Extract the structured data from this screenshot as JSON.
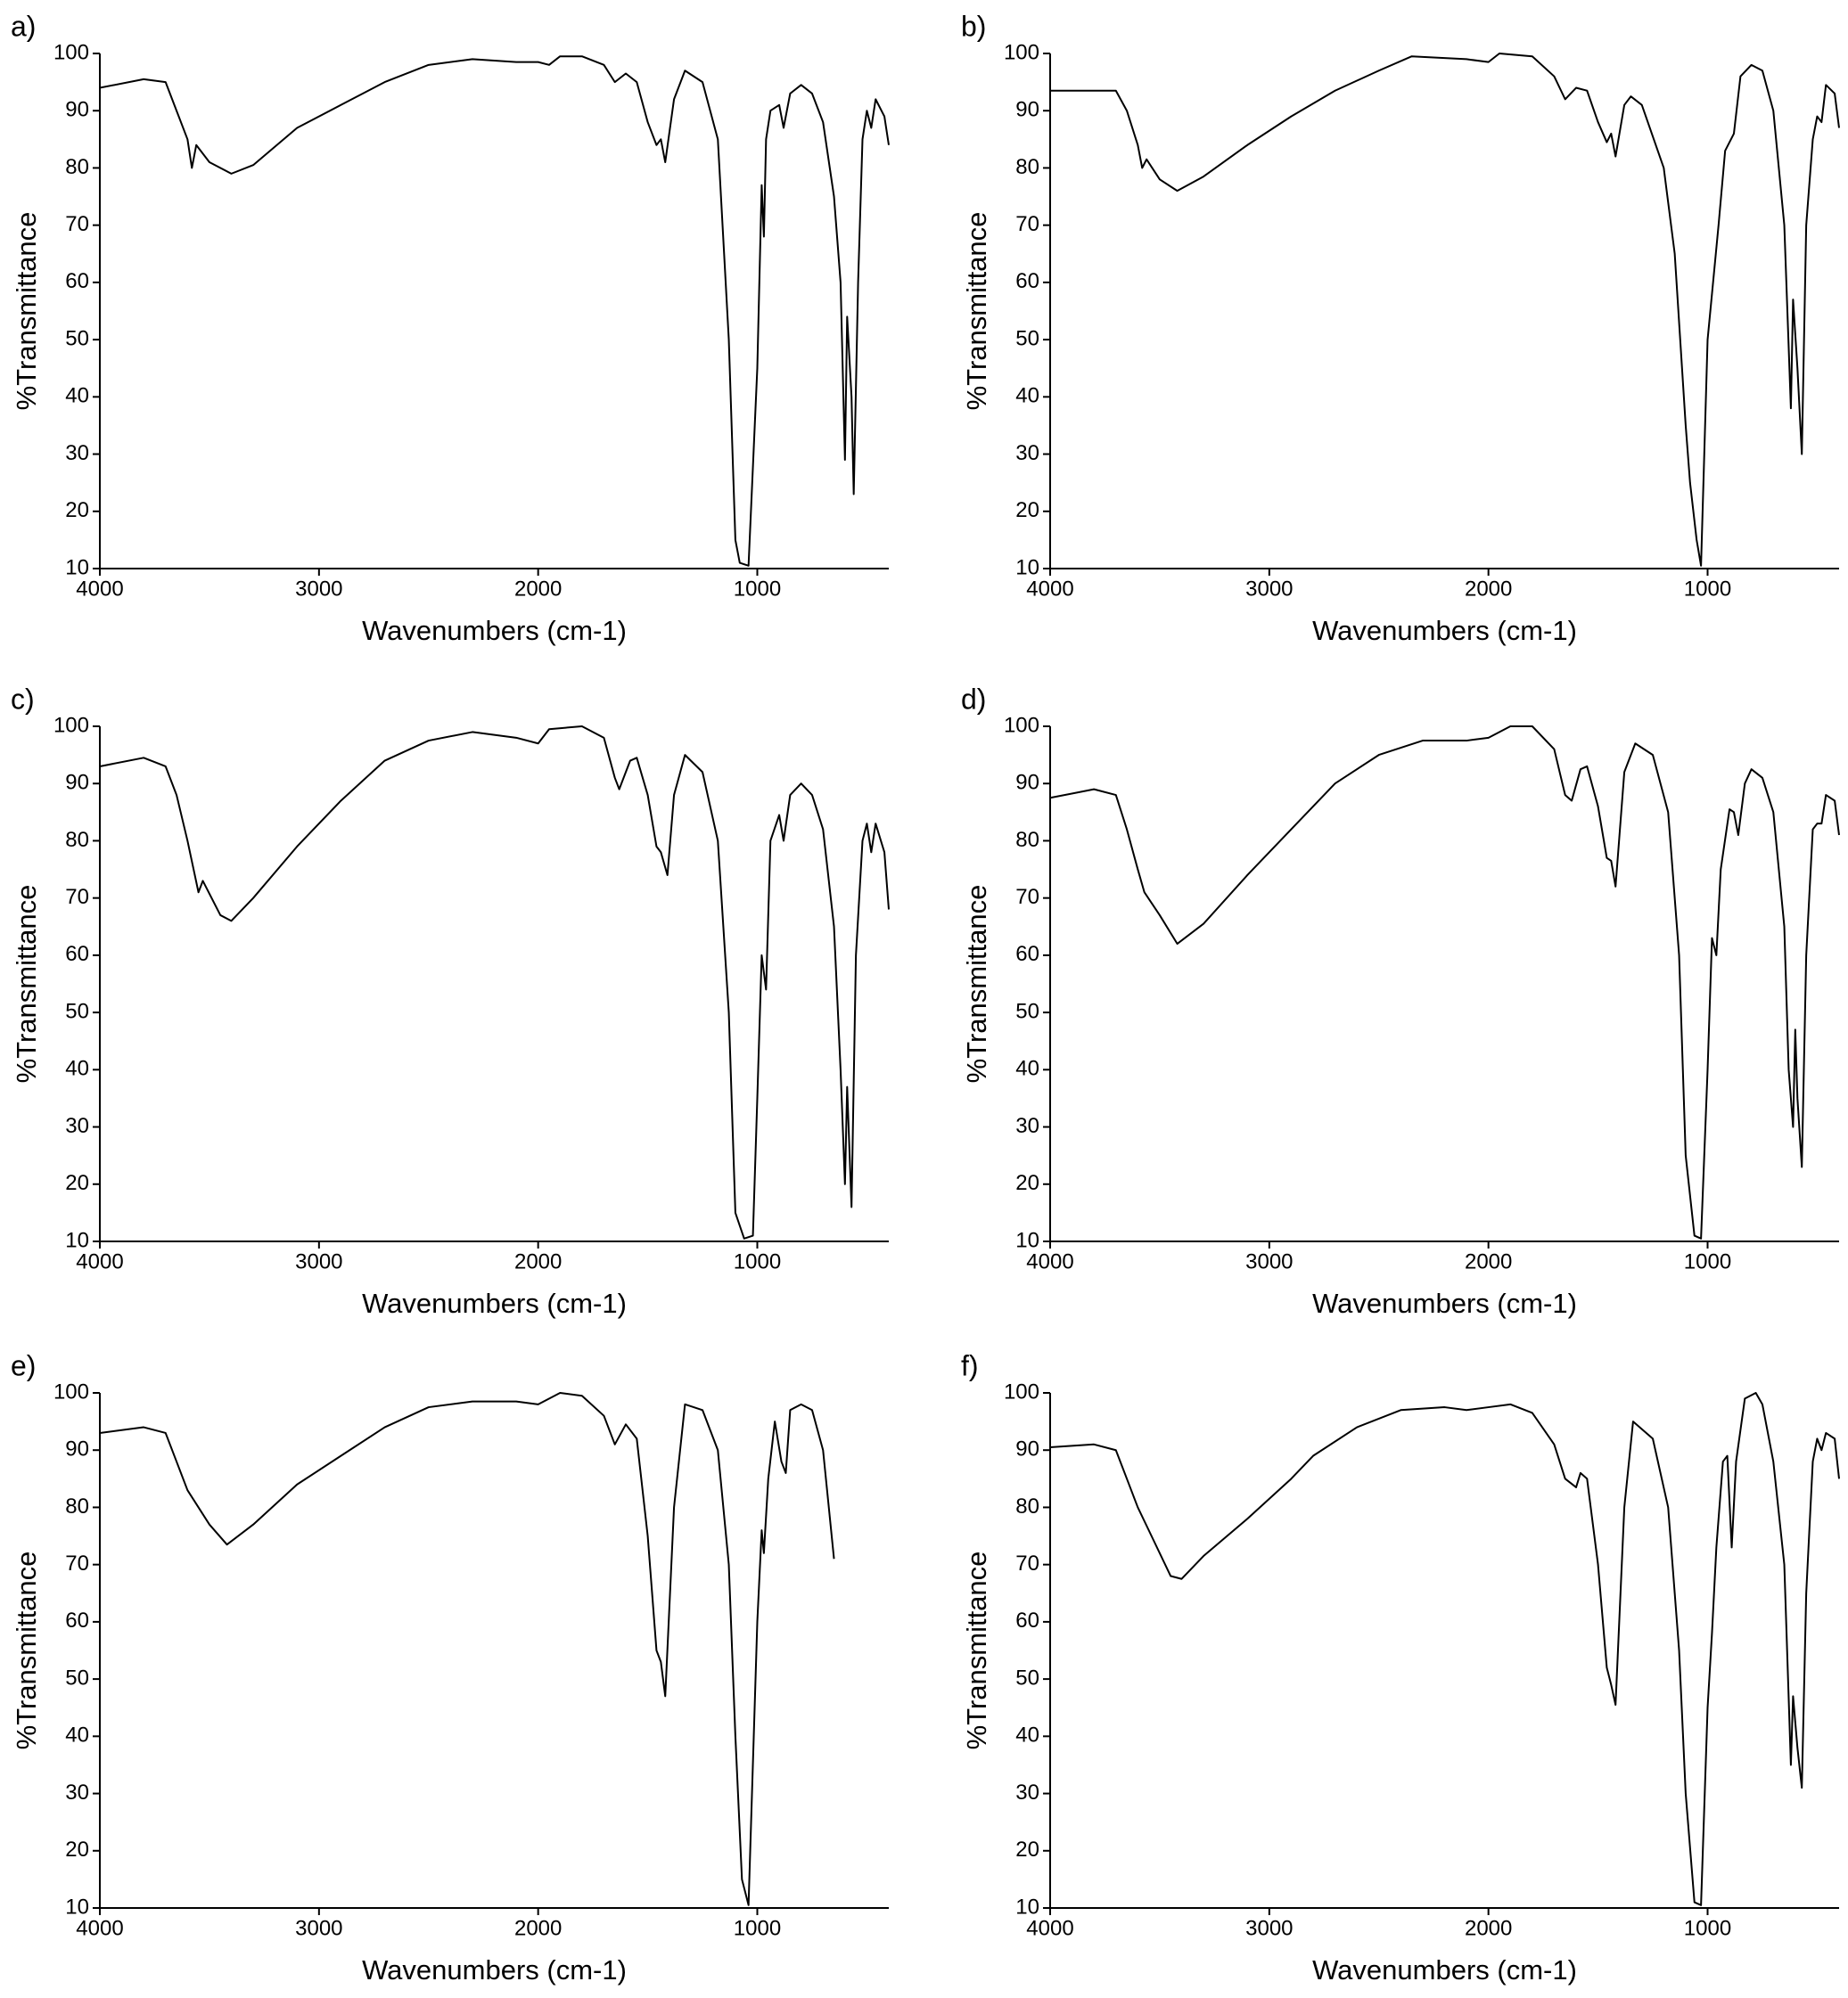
{
  "chart_data": [
    {
      "type": "line",
      "title": "a)",
      "x_label": "Wavenumbers (cm-1)",
      "y_label": "%Transmittance",
      "xlim": [
        4000,
        400
      ],
      "ylim": [
        10,
        100
      ],
      "xticks": [
        4000,
        3000,
        2000,
        1000
      ],
      "yticks": [
        10,
        20,
        30,
        40,
        50,
        60,
        70,
        80,
        90,
        100
      ],
      "x": [
        4000,
        3800,
        3700,
        3650,
        3600,
        3580,
        3560,
        3500,
        3400,
        3300,
        3100,
        2900,
        2700,
        2500,
        2300,
        2100,
        2000,
        1950,
        1900,
        1800,
        1700,
        1650,
        1600,
        1550,
        1500,
        1460,
        1440,
        1420,
        1380,
        1330,
        1250,
        1180,
        1130,
        1100,
        1080,
        1040,
        1000,
        980,
        970,
        960,
        940,
        900,
        880,
        850,
        800,
        750,
        700,
        650,
        620,
        600,
        590,
        570,
        560,
        540,
        520,
        500,
        480,
        460,
        420,
        400
      ],
      "series": [
        {
          "color": "#000000",
          "values": [
            94,
            95.5,
            95,
            90,
            85,
            80,
            84,
            81,
            79,
            80.5,
            87,
            91,
            95,
            98,
            99,
            98.5,
            98.5,
            98,
            99.5,
            99.5,
            98,
            95,
            96.5,
            95,
            88,
            84,
            85,
            81,
            92,
            97,
            95,
            85,
            50,
            15,
            11,
            10.5,
            45,
            77,
            68,
            85,
            90,
            91,
            87,
            93,
            94.5,
            93,
            88,
            75,
            60,
            29,
            54,
            40,
            23,
            60,
            85,
            90,
            87,
            92,
            89,
            84
          ]
        }
      ]
    },
    {
      "type": "line",
      "title": "b)",
      "x_label": "Wavenumbers (cm-1)",
      "y_label": "%Transmittance",
      "xlim": [
        4000,
        400
      ],
      "ylim": [
        10,
        100
      ],
      "xticks": [
        4000,
        3000,
        2000,
        1000
      ],
      "yticks": [
        10,
        20,
        30,
        40,
        50,
        60,
        70,
        80,
        90,
        100
      ],
      "x": [
        4000,
        3700,
        3650,
        3600,
        3580,
        3560,
        3500,
        3420,
        3300,
        3100,
        2900,
        2700,
        2500,
        2350,
        2100,
        2000,
        1950,
        1800,
        1700,
        1650,
        1600,
        1550,
        1500,
        1460,
        1440,
        1420,
        1380,
        1350,
        1300,
        1200,
        1150,
        1100,
        1080,
        1050,
        1030,
        1000,
        980,
        950,
        920,
        880,
        850,
        800,
        750,
        700,
        650,
        620,
        610,
        590,
        570,
        550,
        520,
        500,
        480,
        460,
        420,
        400
      ],
      "series": [
        {
          "color": "#000000",
          "values": [
            93.5,
            93.5,
            90,
            84,
            80,
            81.5,
            78,
            76,
            78.5,
            84,
            89,
            93.5,
            97,
            99.5,
            99,
            98.5,
            100,
            99.5,
            96,
            92,
            94,
            93.5,
            88,
            84.5,
            86,
            82,
            91,
            92.5,
            91,
            80,
            65,
            35,
            25,
            15,
            10.5,
            50,
            58,
            70,
            83,
            86,
            96,
            98,
            97,
            90,
            70,
            38,
            57,
            45,
            30,
            70,
            85,
            89,
            88,
            94.5,
            93,
            87
          ]
        }
      ]
    },
    {
      "type": "line",
      "title": "c)",
      "x_label": "Wavenumbers (cm-1)",
      "y_label": "%Transmittance",
      "xlim": [
        4000,
        400
      ],
      "ylim": [
        10,
        100
      ],
      "xticks": [
        4000,
        3000,
        2000,
        1000
      ],
      "yticks": [
        10,
        20,
        30,
        40,
        50,
        60,
        70,
        80,
        90,
        100
      ],
      "x": [
        4000,
        3800,
        3700,
        3650,
        3600,
        3550,
        3530,
        3450,
        3400,
        3300,
        3100,
        2900,
        2700,
        2500,
        2300,
        2100,
        2000,
        1950,
        1800,
        1700,
        1650,
        1630,
        1580,
        1550,
        1500,
        1460,
        1440,
        1410,
        1380,
        1330,
        1250,
        1180,
        1130,
        1100,
        1060,
        1020,
        1000,
        980,
        960,
        940,
        900,
        880,
        850,
        800,
        750,
        700,
        650,
        620,
        600,
        590,
        570,
        550,
        520,
        500,
        480,
        460,
        420,
        400
      ],
      "series": [
        {
          "color": "#000000",
          "values": [
            93,
            94.5,
            93,
            88,
            80,
            71,
            73,
            67,
            66,
            70,
            79,
            87,
            94,
            97.5,
            99,
            98,
            97,
            99.5,
            100,
            98,
            91,
            89,
            94,
            94.5,
            88,
            79,
            78,
            74,
            88,
            95,
            92,
            80,
            50,
            15,
            10.5,
            11,
            35,
            60,
            54,
            80,
            84.5,
            80,
            88,
            90,
            88,
            82,
            65,
            40,
            20,
            37,
            16,
            60,
            80,
            83,
            78,
            83,
            78,
            68
          ]
        }
      ]
    },
    {
      "type": "line",
      "title": "d)",
      "x_label": "Wavenumbers (cm-1)",
      "y_label": "%Transmittance",
      "xlim": [
        4000,
        400
      ],
      "ylim": [
        10,
        100
      ],
      "xticks": [
        4000,
        3000,
        2000,
        1000
      ],
      "yticks": [
        10,
        20,
        30,
        40,
        50,
        60,
        70,
        80,
        90,
        100
      ],
      "x": [
        4000,
        3800,
        3700,
        3650,
        3600,
        3570,
        3500,
        3420,
        3300,
        3100,
        2900,
        2700,
        2500,
        2300,
        2100,
        2000,
        1900,
        1800,
        1700,
        1650,
        1620,
        1580,
        1550,
        1500,
        1460,
        1440,
        1420,
        1380,
        1330,
        1250,
        1180,
        1130,
        1100,
        1060,
        1030,
        1000,
        980,
        960,
        940,
        900,
        880,
        860,
        830,
        800,
        750,
        700,
        650,
        630,
        610,
        600,
        590,
        570,
        550,
        520,
        500,
        480,
        460,
        420,
        400
      ],
      "series": [
        {
          "color": "#000000",
          "values": [
            87.5,
            89,
            88,
            82,
            75,
            71,
            67,
            62,
            65.5,
            74,
            82,
            90,
            95,
            97.5,
            97.5,
            98,
            100,
            100,
            96,
            88,
            87,
            92.5,
            93,
            86,
            77,
            76.5,
            72,
            92,
            97,
            95,
            85,
            60,
            25,
            11,
            10.5,
            40,
            63,
            60,
            75,
            85.5,
            85,
            81,
            90,
            92.5,
            91,
            85,
            65,
            40,
            30,
            47,
            35,
            23,
            60,
            82,
            83,
            83,
            88,
            87,
            81
          ]
        }
      ]
    },
    {
      "type": "line",
      "title": "e)",
      "x_label": "Wavenumbers (cm-1)",
      "y_label": "%Transmittance",
      "xlim": [
        4000,
        400
      ],
      "ylim": [
        10,
        100
      ],
      "xticks": [
        4000,
        3000,
        2000,
        1000
      ],
      "yticks": [
        10,
        20,
        30,
        40,
        50,
        60,
        70,
        80,
        90,
        100
      ],
      "x": [
        4000,
        3800,
        3700,
        3650,
        3600,
        3550,
        3500,
        3420,
        3300,
        3100,
        2900,
        2700,
        2500,
        2300,
        2100,
        2000,
        1900,
        1800,
        1700,
        1650,
        1600,
        1550,
        1500,
        1460,
        1440,
        1420,
        1380,
        1330,
        1250,
        1180,
        1130,
        1100,
        1070,
        1040,
        1000,
        980,
        970,
        950,
        920,
        890,
        870,
        850,
        800,
        750,
        700,
        650
      ],
      "series": [
        {
          "color": "#000000",
          "values": [
            93,
            94,
            93,
            88,
            83,
            80,
            77,
            73.5,
            77,
            84,
            89,
            94,
            97.5,
            98.5,
            98.5,
            98,
            100,
            99.5,
            96,
            91,
            94.5,
            92,
            75,
            55,
            53,
            47,
            80,
            98,
            97,
            90,
            70,
            40,
            15,
            10.5,
            60,
            76,
            72,
            85,
            95,
            88,
            86,
            97,
            98,
            97,
            90,
            71
          ]
        }
      ]
    },
    {
      "type": "line",
      "title": "f)",
      "x_label": "Wavenumbers (cm-1)",
      "y_label": "%Transmittance",
      "xlim": [
        4000,
        400
      ],
      "ylim": [
        10,
        100
      ],
      "xticks": [
        4000,
        3000,
        2000,
        1000
      ],
      "yticks": [
        10,
        20,
        30,
        40,
        50,
        60,
        70,
        80,
        90,
        100
      ],
      "x": [
        4000,
        3800,
        3700,
        3650,
        3600,
        3550,
        3450,
        3400,
        3300,
        3100,
        2900,
        2800,
        2600,
        2400,
        2200,
        2100,
        2000,
        1900,
        1800,
        1700,
        1650,
        1600,
        1580,
        1550,
        1500,
        1460,
        1440,
        1420,
        1380,
        1340,
        1250,
        1180,
        1130,
        1100,
        1060,
        1030,
        1000,
        980,
        960,
        930,
        910,
        890,
        870,
        830,
        780,
        750,
        700,
        650,
        620,
        610,
        590,
        570,
        550,
        520,
        500,
        480,
        460,
        420,
        400
      ],
      "series": [
        {
          "color": "#000000",
          "values": [
            90.5,
            91,
            90,
            85,
            80,
            76,
            68,
            67.5,
            71.5,
            78,
            85,
            89,
            94,
            97,
            97.5,
            97,
            97.5,
            98,
            96.5,
            91,
            85,
            83.5,
            86,
            85,
            70,
            52,
            49,
            45.5,
            80,
            95,
            92,
            80,
            55,
            30,
            11,
            10.5,
            45,
            58,
            73,
            88,
            89,
            73,
            88,
            99,
            100,
            98,
            88,
            70,
            35,
            47,
            38,
            31,
            65,
            88,
            92,
            90,
            93,
            92,
            85
          ]
        }
      ]
    }
  ]
}
